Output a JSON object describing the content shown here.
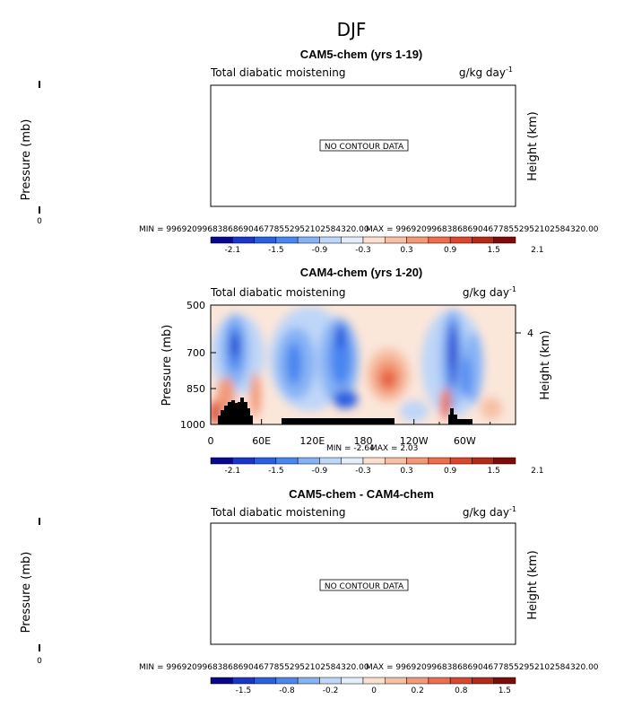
{
  "figure_title": "DJF",
  "colorbar_colors": [
    "#08088a",
    "#1a36c9",
    "#2a5fe0",
    "#4a86f0",
    "#86b2f4",
    "#bed6f8",
    "#e4eefb",
    "#fbe0d0",
    "#f6c0a4",
    "#f29978",
    "#ec6e4c",
    "#d9472d",
    "#b22a18",
    "#7d0c08"
  ],
  "chart_data": [
    {
      "type": "heatmap",
      "title": "CAM5-chem (yrs 1-19)",
      "left_label": "Total diabatic moistening",
      "units": "g/kg day",
      "units_exp": "-1",
      "ylabel": "Pressure (mb)",
      "ylabel_right": "Height (km)",
      "yticks": [
        "0"
      ],
      "message": "NO CONTOUR DATA",
      "min_label": "MIN = 996920996838686904677855295210258432​0.00",
      "max_label": "MAX = 996920996838686904677855295210258432​0.00",
      "colorbar_labels": [
        "-2.1",
        "-1.5",
        "-0.9",
        "-0.3",
        "0.3",
        "0.9",
        "1.5",
        "2.1"
      ]
    },
    {
      "type": "heatmap",
      "title": "CAM4-chem (yrs 1-20)",
      "left_label": "Total diabatic moistening",
      "units": "g/kg day",
      "units_exp": "-1",
      "ylabel": "Pressure (mb)",
      "ylabel_right": "Height (km)",
      "yticks": [
        "500",
        "700",
        "850",
        "1000"
      ],
      "right_ticks": [
        "4"
      ],
      "xticks": [
        "0",
        "60E",
        "120E",
        "180",
        "120W",
        "60W"
      ],
      "min_label": "MIN = -2.64",
      "max_label": "MAX = 2.03",
      "min_value": -2.64,
      "max_value": 2.03,
      "colorbar_labels": [
        "-2.1",
        "-1.5",
        "-0.9",
        "-0.3",
        "0.3",
        "0.9",
        "1.5",
        "2.1"
      ]
    },
    {
      "type": "heatmap",
      "title": "CAM5-chem - CAM4-chem",
      "left_label": "Total diabatic moistening",
      "units": "g/kg day",
      "units_exp": "-1",
      "ylabel": "Pressure (mb)",
      "ylabel_right": "Height (km)",
      "yticks": [
        "0"
      ],
      "message": "NO CONTOUR DATA",
      "min_label": "MIN = 996920996838686904677855295210258432​0.00",
      "max_label": "MAX = 996920996838686904677855295210258432​0.00",
      "colorbar_labels": [
        "-1.5",
        "-0.8",
        "-0.2",
        "0",
        "0.2",
        "0.8",
        "1.5"
      ]
    }
  ]
}
